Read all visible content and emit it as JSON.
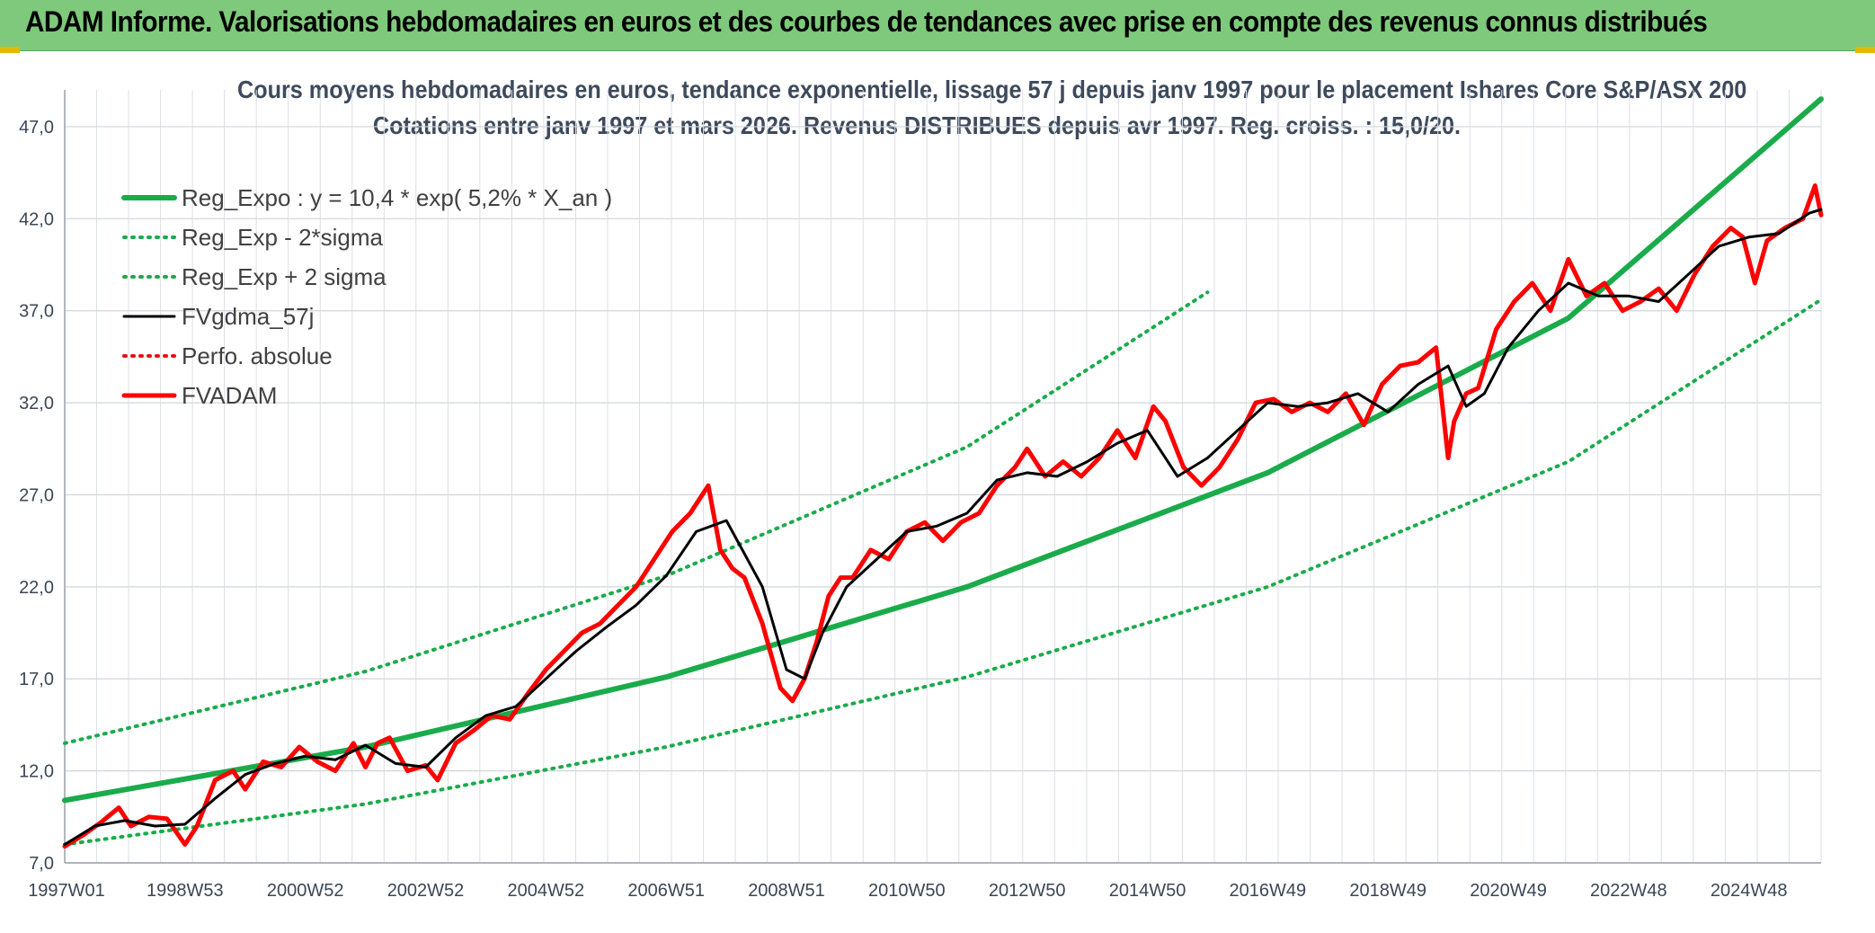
{
  "header": {
    "title": "ADAM Informe. Valorisations hebdomadaires en euros et des courbes de tendances avec prise en compte des revenus connus distribués"
  },
  "chart_data": {
    "type": "line",
    "title_line1": "Cours moyens hebdomadaires en euros, tendance exponentielle, lissage 57 j depuis janv 1997 pour le placement Ishares Core S&P/ASX 200",
    "title_line2": "Cotations entre janv 1997 et mars 2026. Revenus DISTRIBUES depuis avr 1997. Reg. croiss. : 15,0/20.",
    "ylim": [
      7.0,
      49.0
    ],
    "xlim": [
      1997.0,
      2026.2
    ],
    "y_ticks": [
      "7,0",
      "12,0",
      "17,0",
      "22,0",
      "27,0",
      "32,0",
      "37,0",
      "42,0",
      "47,0"
    ],
    "x_ticks": [
      {
        "label": "1997W01",
        "x": 1997.0
      },
      {
        "label": "1998W53",
        "x": 1999.0
      },
      {
        "label": "2000W52",
        "x": 2001.0
      },
      {
        "label": "2002W52",
        "x": 2003.0
      },
      {
        "label": "2004W52",
        "x": 2005.0
      },
      {
        "label": "2006W51",
        "x": 2007.0
      },
      {
        "label": "2008W51",
        "x": 2009.0
      },
      {
        "label": "2010W50",
        "x": 2011.0
      },
      {
        "label": "2012W50",
        "x": 2013.0
      },
      {
        "label": "2014W50",
        "x": 2015.0
      },
      {
        "label": "2016W49",
        "x": 2017.0
      },
      {
        "label": "2018W49",
        "x": 2019.0
      },
      {
        "label": "2020W49",
        "x": 2021.0
      },
      {
        "label": "2022W48",
        "x": 2023.0
      },
      {
        "label": "2024W48",
        "x": 2025.0
      }
    ],
    "grid": true,
    "legend_position": "top-left",
    "series": [
      {
        "name": "Reg_Expo : y = 10,4 * exp( 5,2% *  X_an )",
        "style": "solid",
        "color": "#1aab4b",
        "x": [
          1997.0,
          2002.0,
          2007.0,
          2012.0,
          2017.0,
          2022.0,
          2026.2
        ],
        "values": [
          10.4,
          13.3,
          17.1,
          22.0,
          28.2,
          36.6,
          48.5
        ]
      },
      {
        "name": "Reg_Exp - 2*sigma",
        "style": "dotted",
        "color": "#1aab4b",
        "x": [
          1997.0,
          2002.0,
          2007.0,
          2012.0,
          2017.0,
          2022.0,
          2026.2
        ],
        "values": [
          8.0,
          10.2,
          13.3,
          17.1,
          22.0,
          28.8,
          37.6
        ]
      },
      {
        "name": "Reg_Exp + 2 sigma",
        "style": "dotted",
        "color": "#1aab4b",
        "x": [
          1997.0,
          2002.0,
          2007.0,
          2012.0,
          2016.0
        ],
        "values": [
          13.5,
          17.4,
          22.6,
          29.6,
          38.0
        ]
      },
      {
        "name": "FVgdma_57j",
        "style": "solid",
        "color": "#000000",
        "x": [
          1997.0,
          1997.5,
          1998.0,
          1998.5,
          1999.0,
          1999.5,
          2000.0,
          2000.5,
          2001.0,
          2001.5,
          2002.0,
          2002.5,
          2003.0,
          2003.5,
          2004.0,
          2004.5,
          2005.0,
          2005.5,
          2006.0,
          2006.5,
          2007.0,
          2007.5,
          2008.0,
          2008.3,
          2008.6,
          2009.0,
          2009.3,
          2009.6,
          2010.0,
          2010.5,
          2011.0,
          2011.5,
          2012.0,
          2012.5,
          2013.0,
          2013.5,
          2014.0,
          2014.5,
          2015.0,
          2015.5,
          2016.0,
          2016.5,
          2017.0,
          2017.5,
          2018.0,
          2018.5,
          2019.0,
          2019.5,
          2020.0,
          2020.3,
          2020.6,
          2021.0,
          2021.5,
          2022.0,
          2022.5,
          2023.0,
          2023.5,
          2024.0,
          2024.5,
          2025.0,
          2025.5,
          2026.0,
          2026.2
        ],
        "values": [
          8.0,
          9.0,
          9.3,
          9.0,
          9.1,
          10.5,
          11.8,
          12.4,
          12.8,
          12.6,
          13.4,
          12.4,
          12.2,
          13.8,
          15.0,
          15.5,
          17.0,
          18.5,
          19.8,
          21.0,
          22.6,
          25.0,
          25.6,
          23.8,
          22.0,
          17.5,
          17.0,
          19.5,
          22.0,
          23.5,
          25.0,
          25.3,
          26.0,
          27.8,
          28.2,
          28.0,
          28.8,
          29.8,
          30.5,
          28.0,
          29.0,
          30.5,
          32.0,
          31.8,
          32.0,
          32.5,
          31.5,
          33.0,
          34.0,
          31.8,
          32.5,
          35.0,
          37.0,
          38.5,
          37.8,
          37.8,
          37.5,
          39.0,
          40.5,
          41.0,
          41.2,
          42.3,
          42.5
        ]
      },
      {
        "name": "Perfo. absolue",
        "style": "dotted",
        "color": "#e81010",
        "x": [],
        "values": []
      },
      {
        "name": "FVADAM",
        "style": "solid",
        "color": "#ff0000",
        "x": [
          1997.0,
          1997.3,
          1997.6,
          1997.9,
          1998.1,
          1998.4,
          1998.7,
          1999.0,
          1999.2,
          1999.5,
          1999.8,
          2000.0,
          2000.3,
          2000.6,
          2000.9,
          2001.2,
          2001.5,
          2001.8,
          2002.0,
          2002.2,
          2002.4,
          2002.7,
          2003.0,
          2003.2,
          2003.5,
          2003.8,
          2004.1,
          2004.4,
          2004.7,
          2005.0,
          2005.3,
          2005.6,
          2005.9,
          2006.2,
          2006.5,
          2006.8,
          2007.1,
          2007.4,
          2007.7,
          2007.9,
          2008.1,
          2008.3,
          2008.6,
          2008.9,
          2009.1,
          2009.3,
          2009.5,
          2009.7,
          2009.9,
          2010.1,
          2010.4,
          2010.7,
          2011.0,
          2011.3,
          2011.6,
          2011.9,
          2012.2,
          2012.5,
          2012.8,
          2013.0,
          2013.3,
          2013.6,
          2013.9,
          2014.2,
          2014.5,
          2014.8,
          2015.1,
          2015.3,
          2015.6,
          2015.9,
          2016.2,
          2016.5,
          2016.8,
          2017.1,
          2017.4,
          2017.7,
          2018.0,
          2018.3,
          2018.6,
          2018.9,
          2019.2,
          2019.5,
          2019.8,
          2020.0,
          2020.1,
          2020.3,
          2020.5,
          2020.8,
          2021.1,
          2021.4,
          2021.7,
          2022.0,
          2022.3,
          2022.6,
          2022.9,
          2023.2,
          2023.5,
          2023.8,
          2024.1,
          2024.4,
          2024.7,
          2024.9,
          2025.1,
          2025.3,
          2025.6,
          2025.9,
          2026.1,
          2026.2
        ],
        "values": [
          7.9,
          8.5,
          9.2,
          10.0,
          9.0,
          9.5,
          9.4,
          8.0,
          9.0,
          11.5,
          12.0,
          11.0,
          12.5,
          12.2,
          13.3,
          12.5,
          12.0,
          13.5,
          12.2,
          13.5,
          13.8,
          12.0,
          12.3,
          11.5,
          13.5,
          14.2,
          15.0,
          14.8,
          16.2,
          17.5,
          18.5,
          19.5,
          20.0,
          21.0,
          22.0,
          23.5,
          25.0,
          26.0,
          27.5,
          24.0,
          23.0,
          22.5,
          20.0,
          16.5,
          15.8,
          17.0,
          19.0,
          21.5,
          22.5,
          22.5,
          24.0,
          23.5,
          25.0,
          25.5,
          24.5,
          25.5,
          26.0,
          27.5,
          28.5,
          29.5,
          28.0,
          28.8,
          28.0,
          29.0,
          30.5,
          29.0,
          31.8,
          31.0,
          28.5,
          27.5,
          28.5,
          30.0,
          32.0,
          32.2,
          31.5,
          32.0,
          31.5,
          32.5,
          30.8,
          33.0,
          34.0,
          34.2,
          35.0,
          29.0,
          31.0,
          32.5,
          32.8,
          36.0,
          37.5,
          38.5,
          37.0,
          39.8,
          37.8,
          38.5,
          37.0,
          37.5,
          38.2,
          37.0,
          39.0,
          40.5,
          41.5,
          41.0,
          38.5,
          40.8,
          41.5,
          42.0,
          43.8,
          42.2
        ]
      }
    ]
  }
}
